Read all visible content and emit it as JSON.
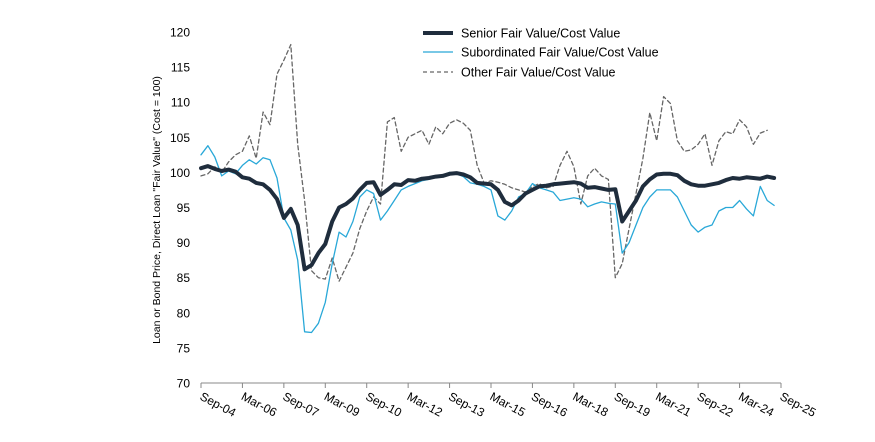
{
  "chart_data": {
    "type": "line",
    "title": "",
    "xlabel": "",
    "ylabel": "Loan or Bond Price, Direct Loan \"Fair Value\" (Cost = 100)",
    "ylim": [
      70,
      120
    ],
    "yticks": [
      70,
      75,
      80,
      85,
      90,
      95,
      100,
      105,
      110,
      115,
      120
    ],
    "xlim": [
      0,
      84
    ],
    "xticks": [
      {
        "label": "Sep-04",
        "pos": 0
      },
      {
        "label": "Mar-06",
        "pos": 6
      },
      {
        "label": "Sep-07",
        "pos": 12
      },
      {
        "label": "Mar-09",
        "pos": 18
      },
      {
        "label": "Sep-10",
        "pos": 24
      },
      {
        "label": "Mar-12",
        "pos": 30
      },
      {
        "label": "Sep-13",
        "pos": 36
      },
      {
        "label": "Mar-15",
        "pos": 42
      },
      {
        "label": "Sep-16",
        "pos": 48
      },
      {
        "label": "Mar-18",
        "pos": 54
      },
      {
        "label": "Sep-19",
        "pos": 60
      },
      {
        "label": "Mar-21",
        "pos": 66
      },
      {
        "label": "Sep-22",
        "pos": 72
      },
      {
        "label": "Mar-24",
        "pos": 78
      },
      {
        "label": "Sep-25",
        "pos": 84
      }
    ],
    "legend_position": "top-right",
    "series": [
      {
        "name": "Senior Fair Value/Cost Value",
        "color": "#1f2d3d",
        "style": "solid-thick",
        "points": [
          [
            0,
            100.6
          ],
          [
            1,
            100.9
          ],
          [
            2,
            100.5
          ],
          [
            3,
            100.2
          ],
          [
            4,
            100.4
          ],
          [
            5,
            100.1
          ],
          [
            6,
            99.3
          ],
          [
            7,
            99.1
          ],
          [
            8,
            98.5
          ],
          [
            9,
            98.3
          ],
          [
            10,
            97.5
          ],
          [
            11,
            96.2
          ],
          [
            12,
            93.5
          ],
          [
            13,
            94.8
          ],
          [
            14,
            92.5
          ],
          [
            15,
            86.2
          ],
          [
            16,
            86.8
          ],
          [
            17,
            88.5
          ],
          [
            18,
            89.8
          ],
          [
            19,
            93
          ],
          [
            20,
            95
          ],
          [
            21,
            95.5
          ],
          [
            22,
            96.3
          ],
          [
            23,
            97.5
          ],
          [
            24,
            98.5
          ],
          [
            25,
            98.6
          ],
          [
            26,
            96.8
          ],
          [
            27,
            97.5
          ],
          [
            28,
            98.3
          ],
          [
            29,
            98.2
          ],
          [
            30,
            98.9
          ],
          [
            31,
            98.8
          ],
          [
            32,
            99.1
          ],
          [
            33,
            99.2
          ],
          [
            34,
            99.4
          ],
          [
            35,
            99.5
          ],
          [
            36,
            99.8
          ],
          [
            37,
            99.9
          ],
          [
            38,
            99.7
          ],
          [
            39,
            99.3
          ],
          [
            40,
            98.5
          ],
          [
            41,
            98.4
          ],
          [
            42,
            98.3
          ],
          [
            43,
            97.5
          ],
          [
            44,
            95.8
          ],
          [
            45,
            95.3
          ],
          [
            46,
            96
          ],
          [
            47,
            97
          ],
          [
            48,
            97.5
          ],
          [
            49,
            98
          ],
          [
            50,
            98.1
          ],
          [
            51,
            98.3
          ],
          [
            52,
            98.4
          ],
          [
            53,
            98.5
          ],
          [
            54,
            98.6
          ],
          [
            55,
            98.4
          ],
          [
            56,
            97.8
          ],
          [
            57,
            97.9
          ],
          [
            58,
            97.7
          ],
          [
            59,
            97.5
          ],
          [
            60,
            97.6
          ],
          [
            61,
            93
          ],
          [
            62,
            94.5
          ],
          [
            63,
            96
          ],
          [
            64,
            98
          ],
          [
            65,
            99
          ],
          [
            66,
            99.7
          ],
          [
            67,
            99.8
          ],
          [
            68,
            99.8
          ],
          [
            69,
            99.6
          ],
          [
            70,
            98.8
          ],
          [
            71,
            98.3
          ],
          [
            72,
            98.1
          ],
          [
            73,
            98.1
          ],
          [
            74,
            98.3
          ],
          [
            75,
            98.5
          ],
          [
            76,
            98.9
          ],
          [
            77,
            99.2
          ],
          [
            78,
            99.1
          ],
          [
            79,
            99.3
          ],
          [
            80,
            99.2
          ],
          [
            81,
            99.1
          ],
          [
            82,
            99.4
          ],
          [
            83,
            99.2
          ]
        ]
      },
      {
        "name": "Subordinated Fair Value/Cost Value",
        "color": "#29a8d8",
        "style": "solid-thin",
        "points": [
          [
            0,
            102.5
          ],
          [
            1,
            103.8
          ],
          [
            2,
            102.2
          ],
          [
            3,
            99.5
          ],
          [
            4,
            100.2
          ],
          [
            5,
            99.8
          ],
          [
            6,
            101
          ],
          [
            7,
            101.8
          ],
          [
            8,
            101.2
          ],
          [
            9,
            102.1
          ],
          [
            10,
            101.8
          ],
          [
            11,
            99.2
          ],
          [
            12,
            93.5
          ],
          [
            13,
            91.8
          ],
          [
            14,
            87.5
          ],
          [
            15,
            77.3
          ],
          [
            16,
            77.2
          ],
          [
            17,
            78.5
          ],
          [
            18,
            81.5
          ],
          [
            19,
            87
          ],
          [
            20,
            91.5
          ],
          [
            21,
            90.8
          ],
          [
            22,
            93
          ],
          [
            23,
            96.5
          ],
          [
            24,
            97.5
          ],
          [
            25,
            97
          ],
          [
            26,
            93.2
          ],
          [
            27,
            94.5
          ],
          [
            28,
            96
          ],
          [
            29,
            97.5
          ],
          [
            30,
            98
          ],
          [
            31,
            98.4
          ],
          [
            32,
            98.8
          ],
          [
            33,
            99
          ],
          [
            34,
            99.3
          ],
          [
            35,
            99.6
          ],
          [
            36,
            100
          ],
          [
            37,
            99.8
          ],
          [
            38,
            99.4
          ],
          [
            39,
            98.5
          ],
          [
            40,
            98.3
          ],
          [
            41,
            98
          ],
          [
            42,
            97.5
          ],
          [
            43,
            93.8
          ],
          [
            44,
            93.2
          ],
          [
            45,
            94.5
          ],
          [
            46,
            96.5
          ],
          [
            47,
            97
          ],
          [
            48,
            98.4
          ],
          [
            49,
            97.8
          ],
          [
            50,
            97.5
          ],
          [
            51,
            97.2
          ],
          [
            52,
            96
          ],
          [
            53,
            96.2
          ],
          [
            54,
            96.4
          ],
          [
            55,
            96.2
          ],
          [
            56,
            95.1
          ],
          [
            57,
            95.5
          ],
          [
            58,
            95.8
          ],
          [
            59,
            95.6
          ],
          [
            60,
            95.5
          ],
          [
            61,
            88.5
          ],
          [
            62,
            90
          ],
          [
            63,
            92.5
          ],
          [
            64,
            95
          ],
          [
            65,
            96.5
          ],
          [
            66,
            97.5
          ],
          [
            67,
            97.5
          ],
          [
            68,
            97.5
          ],
          [
            69,
            96.5
          ],
          [
            70,
            94.5
          ],
          [
            71,
            92.5
          ],
          [
            72,
            91.5
          ],
          [
            73,
            92.2
          ],
          [
            74,
            92.5
          ],
          [
            75,
            94.5
          ],
          [
            76,
            95
          ],
          [
            77,
            95
          ],
          [
            78,
            96
          ],
          [
            79,
            94.8
          ],
          [
            80,
            93.8
          ],
          [
            81,
            98
          ],
          [
            82,
            96
          ],
          [
            83,
            95.3
          ]
        ]
      },
      {
        "name": "Other Fair Value/Cost Value",
        "color": "#666666",
        "style": "dashed",
        "points": [
          [
            0,
            99.5
          ],
          [
            1,
            99.8
          ],
          [
            2,
            100.8
          ],
          [
            3,
            100
          ],
          [
            4,
            101.5
          ],
          [
            5,
            102.5
          ],
          [
            6,
            103
          ],
          [
            7,
            105.2
          ],
          [
            8,
            102
          ],
          [
            9,
            108.6
          ],
          [
            10,
            106.8
          ],
          [
            11,
            114
          ],
          [
            12,
            116
          ],
          [
            13,
            118.2
          ],
          [
            14,
            104
          ],
          [
            15,
            96
          ],
          [
            16,
            86
          ],
          [
            17,
            85
          ],
          [
            18,
            84.8
          ],
          [
            19,
            87.8
          ],
          [
            20,
            84.5
          ],
          [
            21,
            86.5
          ],
          [
            22,
            88.5
          ],
          [
            23,
            92
          ],
          [
            24,
            94.5
          ],
          [
            25,
            96.5
          ],
          [
            26,
            95.5
          ],
          [
            27,
            107.2
          ],
          [
            28,
            107.8
          ],
          [
            29,
            103
          ],
          [
            30,
            105
          ],
          [
            31,
            105.5
          ],
          [
            32,
            106
          ],
          [
            33,
            104
          ],
          [
            34,
            106.5
          ],
          [
            35,
            105.5
          ],
          [
            36,
            107
          ],
          [
            37,
            107.5
          ],
          [
            38,
            107
          ],
          [
            39,
            106
          ],
          [
            40,
            101
          ],
          [
            41,
            98.5
          ],
          [
            42,
            98.8
          ],
          [
            43,
            98.6
          ],
          [
            44,
            98.3
          ],
          [
            45,
            97.8
          ],
          [
            46,
            97.5
          ],
          [
            47,
            97.2
          ],
          [
            48,
            98
          ],
          [
            49,
            98.4
          ],
          [
            50,
            97.8
          ],
          [
            51,
            98
          ],
          [
            52,
            101
          ],
          [
            53,
            103
          ],
          [
            54,
            100.8
          ],
          [
            55,
            95.5
          ],
          [
            56,
            99.5
          ],
          [
            57,
            100.6
          ],
          [
            58,
            99.5
          ],
          [
            59,
            99
          ],
          [
            60,
            85
          ],
          [
            61,
            87
          ],
          [
            62,
            92
          ],
          [
            63,
            97
          ],
          [
            64,
            102
          ],
          [
            65,
            108.5
          ],
          [
            66,
            104.5
          ],
          [
            67,
            110.8
          ],
          [
            68,
            109.8
          ],
          [
            69,
            104.5
          ],
          [
            70,
            103
          ],
          [
            71,
            103.2
          ],
          [
            72,
            104
          ],
          [
            73,
            105.5
          ],
          [
            74,
            101
          ],
          [
            75,
            104.5
          ],
          [
            76,
            105.8
          ],
          [
            77,
            105.5
          ],
          [
            78,
            107.5
          ],
          [
            79,
            106.5
          ],
          [
            80,
            104
          ],
          [
            81,
            105.6
          ],
          [
            82,
            106
          ]
        ]
      }
    ]
  }
}
